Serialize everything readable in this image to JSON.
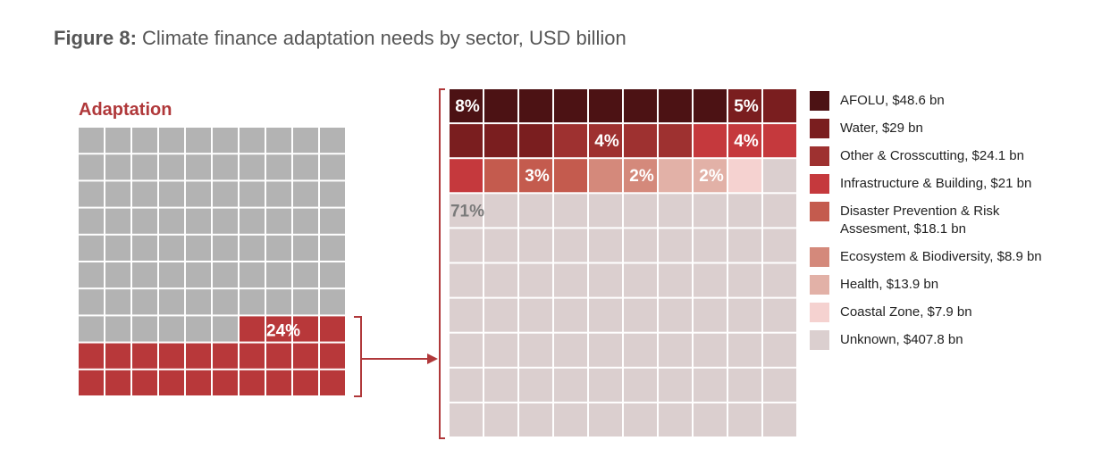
{
  "title": {
    "prefix": "Figure 8:",
    "text": "Climate finance adaptation needs by sector, USD billion"
  },
  "chart_data": {
    "type": "waffle",
    "left_panel": {
      "label": "Adaptation",
      "columns": 10,
      "rows": 10,
      "highlighted_cells": 24,
      "value_label": "24%",
      "colors": {
        "base": "#b3b3b3",
        "highlight": "#b8383a",
        "label": "#b0383a"
      }
    },
    "right_panel": {
      "columns": 10,
      "rows": 10,
      "segments": [
        {
          "name": "AFOLU",
          "legend": "AFOLU, $48.6 bn",
          "value": 48.6,
          "cells": 8,
          "percent_label": "8%",
          "color": "#4c1214"
        },
        {
          "name": "Water",
          "legend": "Water, $29 bn",
          "value": 29,
          "cells": 5,
          "percent_label": "5%",
          "color": "#7a1e1f"
        },
        {
          "name": "Other & Crosscutting",
          "legend": "Other & Crosscutting, $24.1 bn",
          "value": 24.1,
          "cells": 4,
          "percent_label": "4%",
          "color": "#9e3130"
        },
        {
          "name": "Infrastructure & Building",
          "legend": "Infrastructure & Building, $21 bn",
          "value": 21,
          "cells": 4,
          "percent_label": "4%",
          "color": "#c5393d"
        },
        {
          "name": "Disaster Prevention & Risk Assesment",
          "legend": [
            "Disaster Prevention & Risk",
            "Assesment, $18.1 bn"
          ],
          "value": 18.1,
          "cells": 3,
          "percent_label": "3%",
          "color": "#c45b4e"
        },
        {
          "name": "Ecosystem & Biodiversity",
          "legend": "Ecosystem & Biodiversity, $8.9 bn",
          "value": 8.9,
          "cells": 2,
          "percent_label": "2%",
          "color": "#d4897b"
        },
        {
          "name": "Health",
          "legend": "Health, $13.9 bn",
          "value": 13.9,
          "cells": 2,
          "percent_label": "2%",
          "color": "#e2b1a7"
        },
        {
          "name": "Coastal Zone",
          "legend": "Coastal Zone, $7.9 bn",
          "value": 7.9,
          "cells": 1,
          "percent_label": "",
          "color": "#f5d2d0"
        },
        {
          "name": "Unknown",
          "legend": "Unknown, $407.8 bn",
          "value": 407.8,
          "cells": 71,
          "percent_label": "71%",
          "color": "#dbcfcf"
        }
      ]
    },
    "colors": {
      "bracket": "#b0383a",
      "arrow": "#b0383a"
    }
  }
}
